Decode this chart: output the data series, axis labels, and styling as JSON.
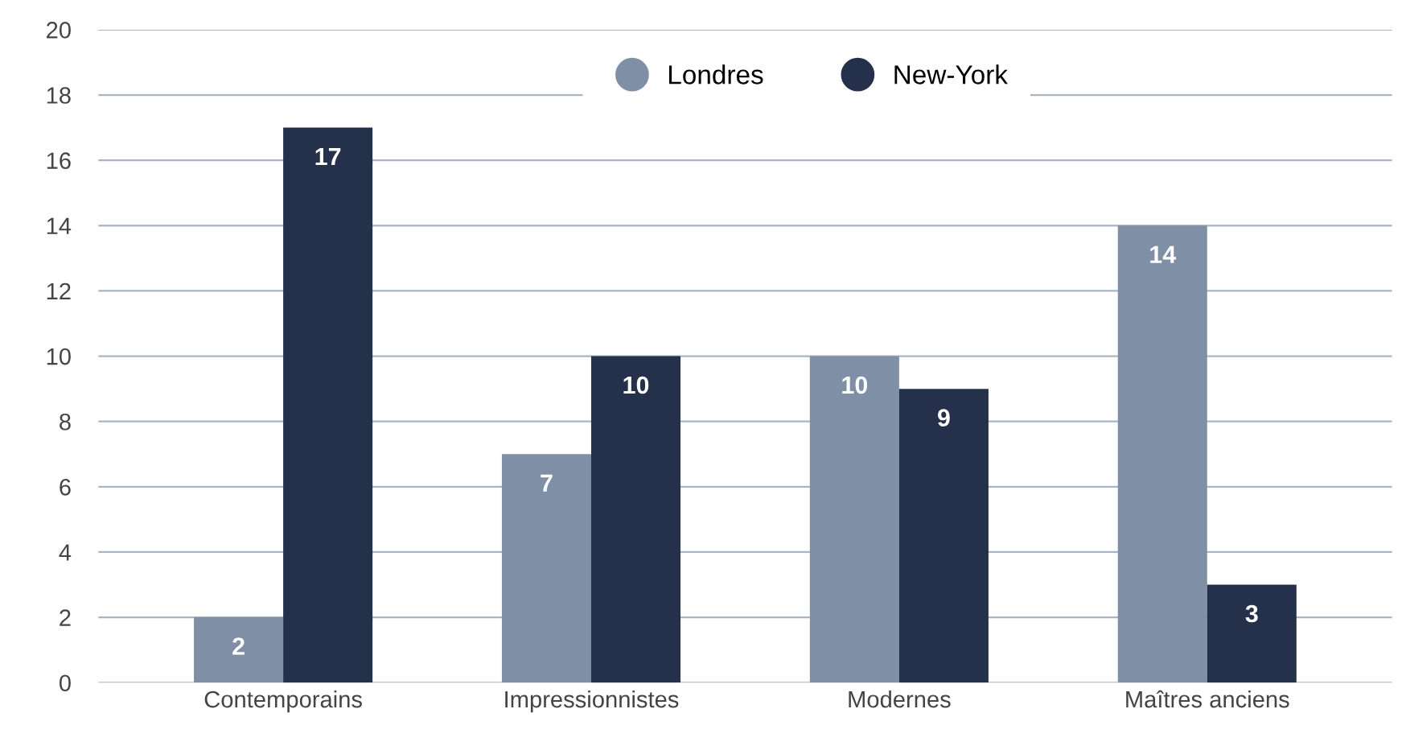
{
  "chart_data": {
    "type": "bar",
    "categories": [
      "Contemporains",
      "Impressionnistes",
      "Modernes",
      "Maîtres anciens"
    ],
    "series": [
      {
        "name": "Londres",
        "color": "#7f90a6",
        "values": [
          2,
          7,
          10,
          14
        ]
      },
      {
        "name": "New-York",
        "color": "#25314b",
        "values": [
          17,
          10,
          9,
          3
        ]
      }
    ],
    "ylim": [
      0,
      20
    ],
    "yticks": [
      0,
      2,
      4,
      6,
      8,
      10,
      12,
      14,
      16,
      18,
      20
    ],
    "grid": "y",
    "legend": "top right",
    "data_labels": true
  }
}
